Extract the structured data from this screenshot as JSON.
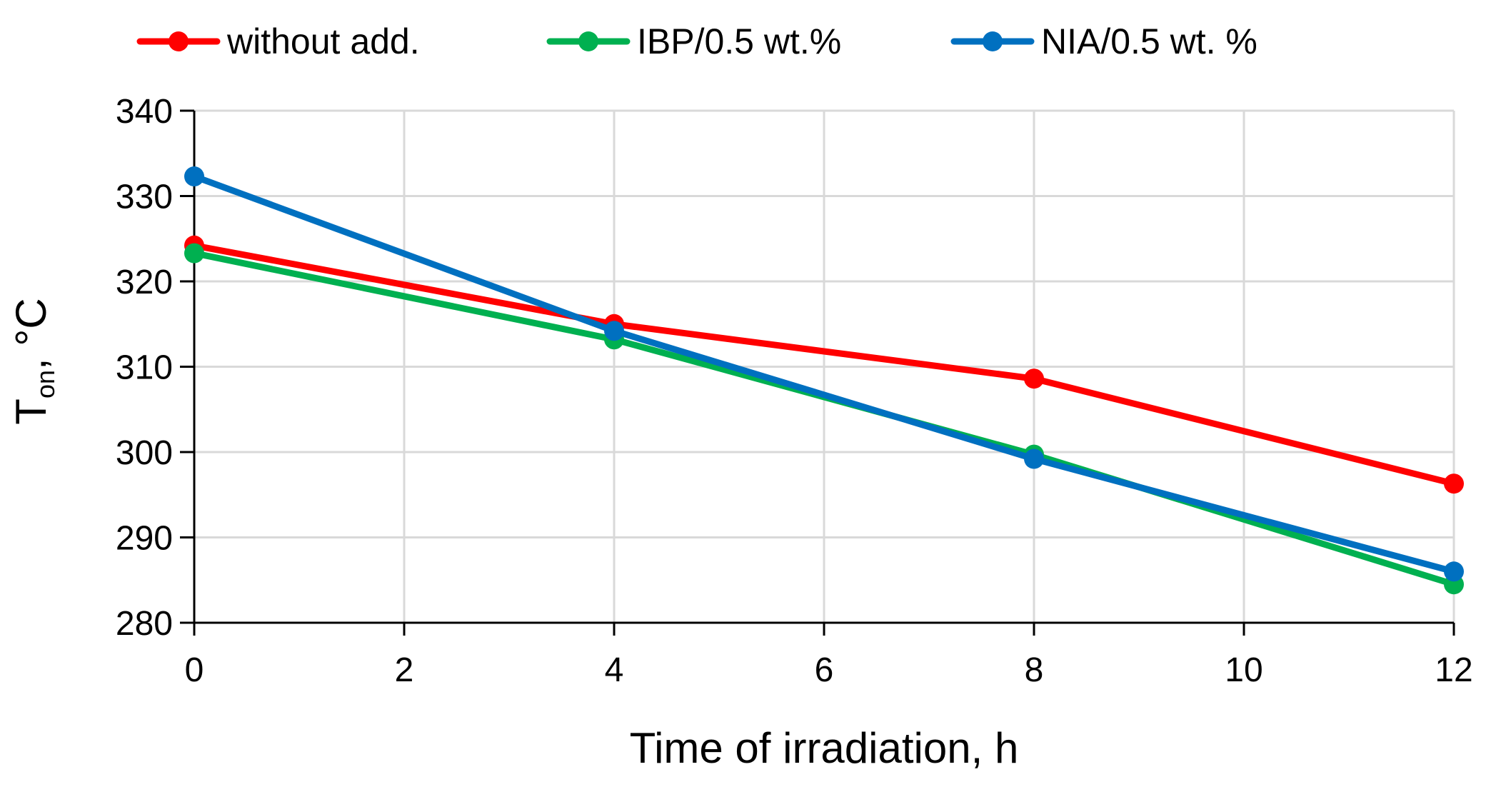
{
  "chart_data": {
    "type": "line",
    "title": "",
    "xlabel": "Time of irradiation, h",
    "ylabel": {
      "main": "T",
      "subscript": "on",
      "suffix": ", °C"
    },
    "xlim": [
      0,
      12
    ],
    "ylim": [
      280,
      340
    ],
    "xticks": [
      0,
      2,
      4,
      6,
      8,
      10,
      12
    ],
    "yticks": [
      280,
      290,
      300,
      310,
      320,
      330,
      340
    ],
    "grid": true,
    "legend_position": "top",
    "series": [
      {
        "name": "without add.",
        "color": "#ff0000",
        "x": [
          0,
          4,
          8,
          12
        ],
        "y": [
          324.2,
          315.0,
          308.6,
          296.3
        ]
      },
      {
        "name": "IBP/0.5 wt.%",
        "color": "#00b050",
        "x": [
          0,
          4,
          8,
          12
        ],
        "y": [
          323.3,
          313.2,
          299.7,
          284.5
        ]
      },
      {
        "name": "NIA/0.5 wt. %",
        "color": "#0070c0",
        "x": [
          0,
          4,
          8,
          12
        ],
        "y": [
          332.3,
          314.2,
          299.2,
          286.0
        ]
      }
    ]
  }
}
